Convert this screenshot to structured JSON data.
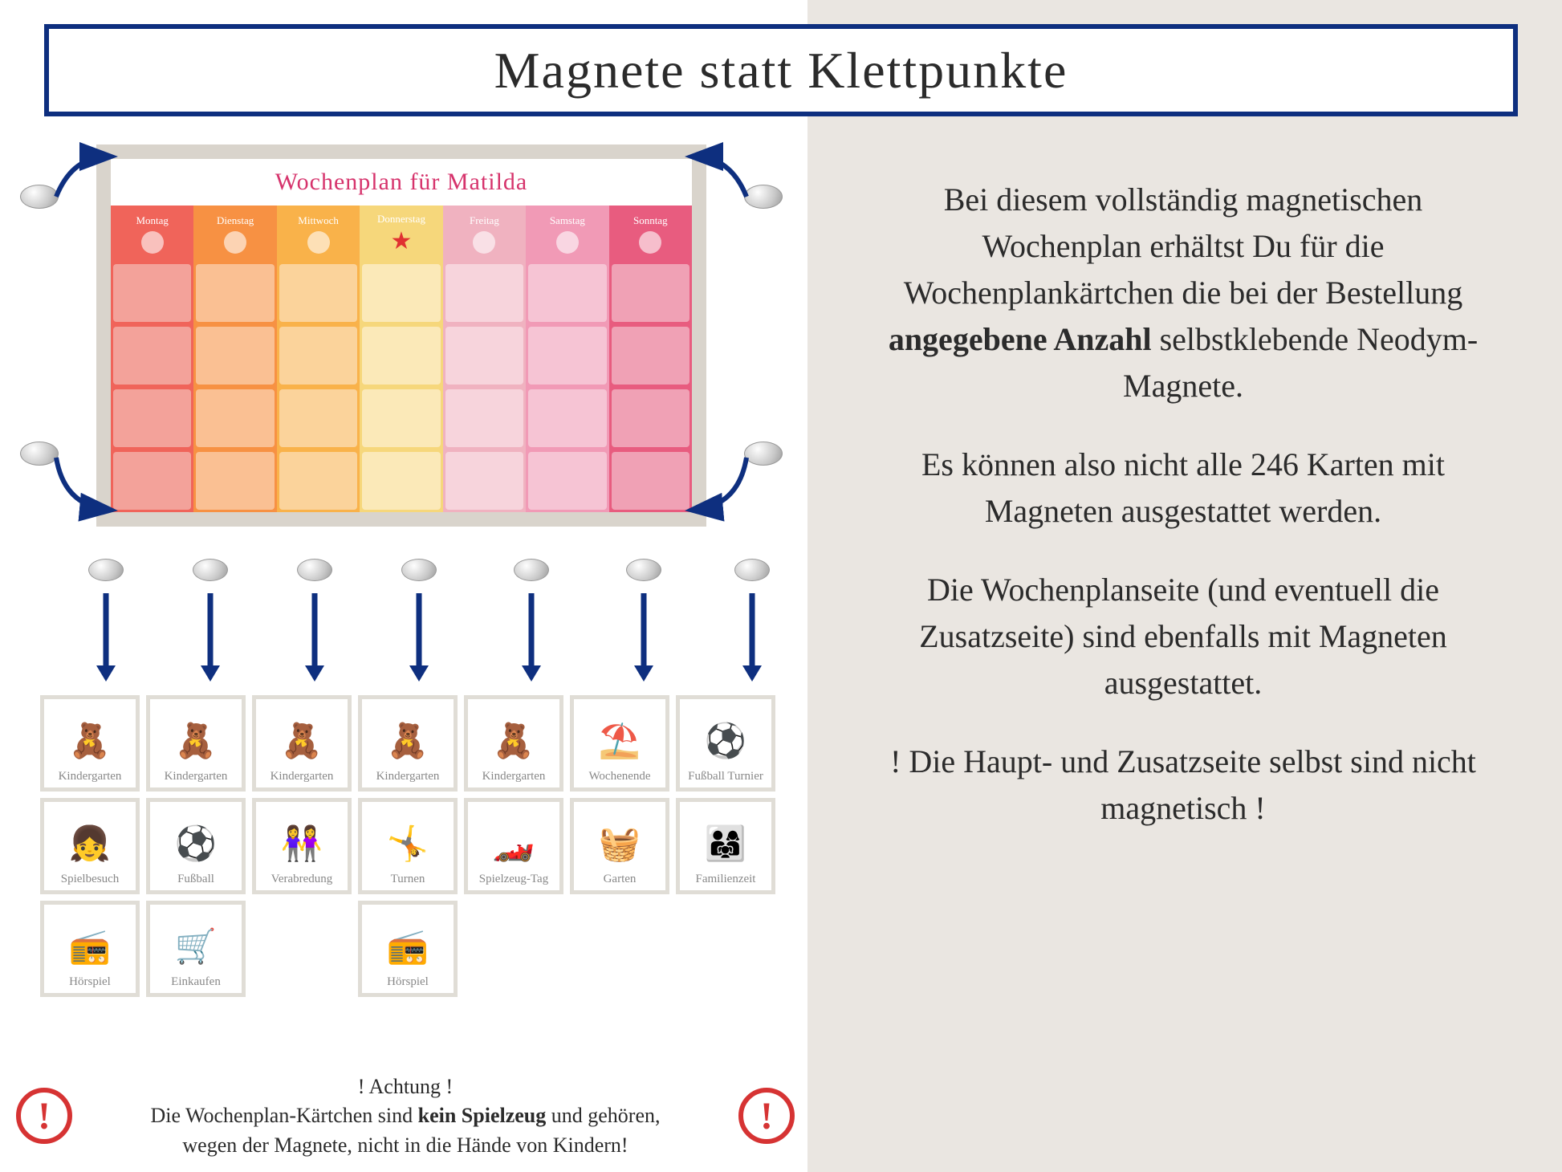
{
  "title": "Magnete statt Klettpunkte",
  "sidebar": {
    "p1a": "Bei diesem vollständig magnetischen Wochenplan erhältst Du für die Wochenplankärtchen die  bei der Bestellung ",
    "p1b": "angegebene Anzahl",
    "p1c": " selbstklebende Neodym-Magnete.",
    "p2": "Es können also nicht alle 246 Karten mit Magneten ausgestattet werden.",
    "p3": "Die Wochenplanseite (und eventuell die Zusatzseite) sind ebenfalls mit Magneten ausgestattet.",
    "p4": "! Die Haupt- und Zusatzseite selbst sind nicht magnetisch !"
  },
  "board": {
    "title": "Wochenplan für Matilda",
    "days": [
      {
        "name": "Montag",
        "bg": "#f0645a",
        "cell": "#f3a29a"
      },
      {
        "name": "Dienstag",
        "bg": "#f79143",
        "cell": "#fac093"
      },
      {
        "name": "Mittwoch",
        "bg": "#f9b24a",
        "cell": "#fbd39b"
      },
      {
        "name": "Donnerstag",
        "bg": "#f6d77b",
        "cell": "#fbe9b8",
        "star": true
      },
      {
        "name": "Freitag",
        "bg": "#f0b2c0",
        "cell": "#f7d4dc"
      },
      {
        "name": "Samstag",
        "bg": "#f19ab6",
        "cell": "#f6c4d4"
      },
      {
        "name": "Sonntag",
        "bg": "#e85c7f",
        "cell": "#f0a1b5"
      }
    ],
    "rows": 4
  },
  "cards": [
    [
      {
        "label": "Kindergarten",
        "emoji": "🧸"
      },
      {
        "label": "Kindergarten",
        "emoji": "🧸"
      },
      {
        "label": "Kindergarten",
        "emoji": "🧸"
      },
      {
        "label": "Kindergarten",
        "emoji": "🧸"
      },
      {
        "label": "Kindergarten",
        "emoji": "🧸"
      },
      {
        "label": "Wochenende",
        "emoji": "⛱️"
      },
      {
        "label": "Fußball Turnier",
        "emoji": "⚽"
      }
    ],
    [
      {
        "label": "Spielbesuch",
        "emoji": "👧"
      },
      {
        "label": "Fußball",
        "emoji": "⚽"
      },
      {
        "label": "Verabredung",
        "emoji": "👭"
      },
      {
        "label": "Turnen",
        "emoji": "🤸"
      },
      {
        "label": "Spielzeug-Tag",
        "emoji": "🏎️"
      },
      {
        "label": "Garten",
        "emoji": "🧺"
      },
      {
        "label": "Familienzeit",
        "emoji": "👨‍👩‍👧"
      }
    ],
    [
      {
        "label": "Hörspiel",
        "emoji": "📻"
      },
      {
        "label": "Einkaufen",
        "emoji": "🛒"
      },
      null,
      {
        "label": "Hörspiel",
        "emoji": "📻"
      },
      null,
      null,
      null
    ]
  ],
  "warning": {
    "heading": "! Achtung !",
    "line_a": "Die Wochenplan-Kärtchen sind ",
    "line_b": "kein Spielzeug",
    "line_c": " und gehören,",
    "line2": "wegen der Magnete, nicht in die Hände von Kindern!"
  },
  "colors": {
    "border": "#0e2f7f",
    "arrow": "#0e2f7f"
  },
  "magnet_col_positions": [
    50,
    180,
    310,
    440,
    580,
    720,
    855
  ]
}
